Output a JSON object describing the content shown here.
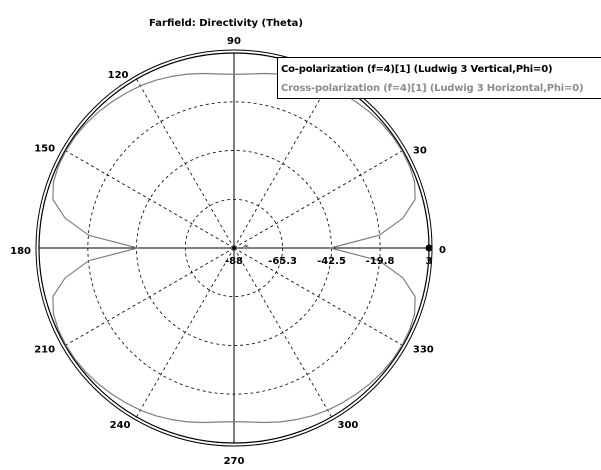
{
  "colors": {
    "background": "#ffffff",
    "co_polarization": "#7f7f7f",
    "cross_polarization": "#7f7f7f",
    "outer_circle": "#000000",
    "grid": "#000000",
    "legend_cross_text": "#8c8c8c"
  },
  "chart_data": {
    "type": "polar_line",
    "title": "Farfield: Directivity (Theta)",
    "angle_direction": "counterclockwise",
    "zero_angle_position": "right",
    "angle_ticks": [
      0,
      30,
      60,
      90,
      120,
      150,
      180,
      210,
      240,
      270,
      300,
      330
    ],
    "angle_tick_labels": [
      "0",
      "30",
      "",
      "90",
      "120",
      "150",
      "180",
      "210",
      "240",
      "270",
      "300",
      "330"
    ],
    "radial_range": [
      -88,
      3
    ],
    "radial_ticks": [
      -88,
      -65.3,
      -42.5,
      -19.8,
      3
    ],
    "radial_tick_labels": [
      "-88",
      "-65.3",
      "-42.5",
      "-19.8",
      "3"
    ],
    "legend_placement": "top-right",
    "series": [
      {
        "name": "Co-polarization (f=4)[1] (Ludwig 3 Vertical,Phi=0)",
        "angles_deg": [
          0,
          5,
          10,
          15,
          20,
          25,
          30,
          35,
          40,
          45,
          50,
          55,
          60,
          65,
          70,
          75,
          80,
          85,
          90,
          95,
          100,
          105,
          110,
          115,
          120,
          125,
          130,
          135,
          140,
          145,
          150,
          155,
          160,
          165,
          170,
          175,
          180,
          185,
          190,
          195,
          200,
          205,
          210,
          215,
          220,
          225,
          230,
          235,
          240,
          245,
          250,
          255,
          260,
          265,
          270,
          275,
          280,
          285,
          290,
          295,
          300,
          305,
          310,
          315,
          320,
          325,
          330,
          335,
          340,
          345,
          350,
          355,
          360
        ],
        "values": [
          -43,
          -20,
          -8,
          -0.5,
          1.7,
          2.4,
          2.6,
          2.5,
          2.2,
          1.6,
          0.9,
          0.2,
          -0.6,
          -1.6,
          -2.8,
          -4.0,
          -5.3,
          -6.5,
          -7.0,
          -6.5,
          -5.3,
          -4.0,
          -2.8,
          -1.6,
          -0.6,
          0.2,
          0.9,
          1.6,
          2.2,
          2.5,
          2.6,
          2.4,
          1.7,
          -0.5,
          -8,
          -20,
          -43,
          -20,
          -8,
          -0.5,
          1.7,
          2.4,
          2.6,
          2.5,
          2.2,
          1.6,
          0.9,
          0.2,
          -0.6,
          -1.6,
          -2.8,
          -4.0,
          -5.3,
          -6.5,
          -7.0,
          -6.5,
          -5.3,
          -4.0,
          -2.8,
          -1.6,
          -0.6,
          0.2,
          0.9,
          1.6,
          2.2,
          2.5,
          2.6,
          2.4,
          1.7,
          -0.5,
          -8,
          -20,
          -43
        ]
      },
      {
        "name": "Cross-polarization (f=4)[1] (Ludwig 3 Horizontal,Phi=0)",
        "angles_deg": [
          0,
          90,
          180,
          270
        ],
        "values": [
          -88,
          -88,
          -88,
          -88
        ]
      }
    ]
  }
}
